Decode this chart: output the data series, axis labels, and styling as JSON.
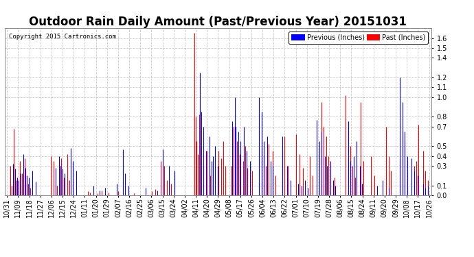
{
  "title": "Outdoor Rain Daily Amount (Past/Previous Year) 20151031",
  "copyright": "Copyright 2015 Cartronics.com",
  "legend_previous": "Previous (Inches)",
  "legend_past": "Past (Inches)",
  "ylim": [
    0.0,
    1.7
  ],
  "yticks": [
    0.0,
    0.1,
    0.3,
    0.4,
    0.5,
    0.7,
    0.8,
    1.0,
    1.1,
    1.2,
    1.4,
    1.5,
    1.6
  ],
  "color_previous": "#0000FF",
  "color_past": "#FF0000",
  "bg_color": "#ffffff",
  "grid_color": "#bbbbbb",
  "x_labels": [
    "10/31",
    "11/09",
    "11/18",
    "11/27",
    "12/06",
    "12/15",
    "12/24",
    "01/11",
    "01/20",
    "01/29",
    "02/07",
    "02/16",
    "02/25",
    "03/06",
    "03/15",
    "03/24",
    "04/02",
    "04/11",
    "04/20",
    "04/29",
    "05/08",
    "05/17",
    "05/26",
    "06/04",
    "06/13",
    "06/22",
    "07/01",
    "07/10",
    "07/19",
    "07/28",
    "08/06",
    "08/15",
    "08/24",
    "09/11",
    "09/20",
    "09/29",
    "10/08",
    "10/17",
    "10/26"
  ],
  "n_points": 366,
  "title_fontsize": 12,
  "label_fontsize": 7
}
